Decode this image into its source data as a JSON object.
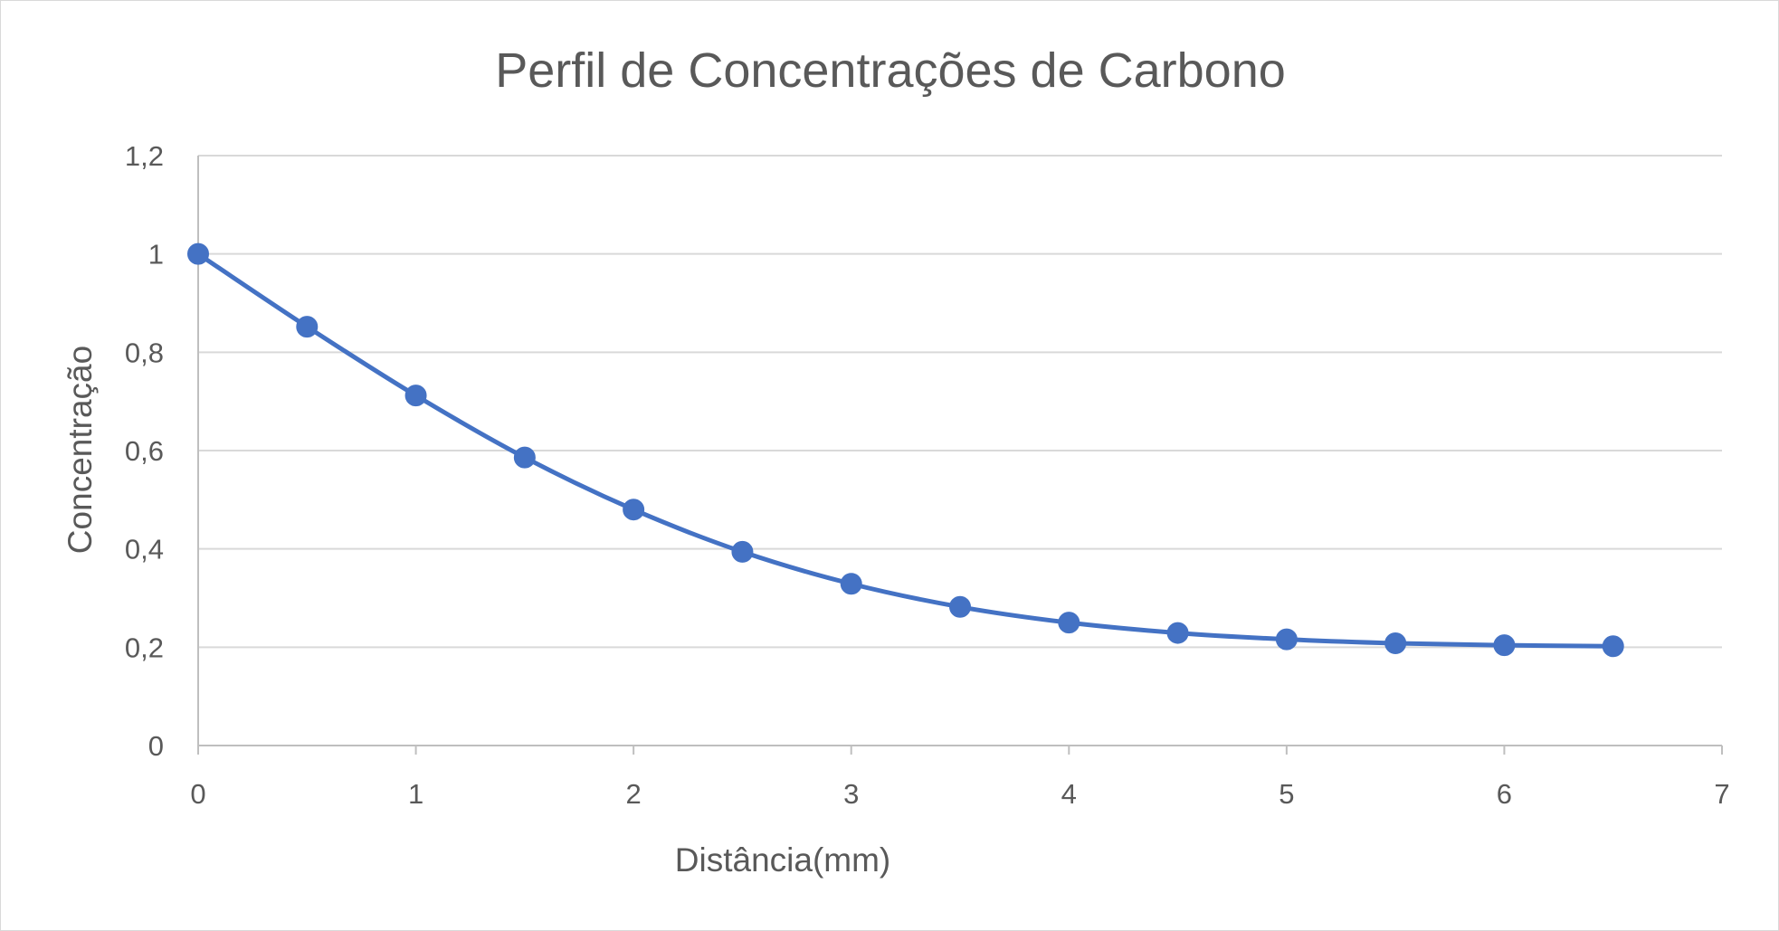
{
  "chart_data": {
    "type": "scatter",
    "title": "Perfil de Concentrações de Carbono",
    "xlabel": "Distância(mm)",
    "ylabel": "Concentração",
    "xlim": [
      0,
      7
    ],
    "ylim": [
      0,
      1.2
    ],
    "x_ticks": [
      {
        "value": 0,
        "label": "0"
      },
      {
        "value": 1,
        "label": "1"
      },
      {
        "value": 2,
        "label": "2"
      },
      {
        "value": 3,
        "label": "3"
      },
      {
        "value": 4,
        "label": "4"
      },
      {
        "value": 5,
        "label": "5"
      },
      {
        "value": 6,
        "label": "6"
      },
      {
        "value": 7,
        "label": "7"
      }
    ],
    "y_ticks": [
      {
        "value": 0,
        "label": "0"
      },
      {
        "value": 0.2,
        "label": "0,2"
      },
      {
        "value": 0.4,
        "label": "0,4"
      },
      {
        "value": 0.6,
        "label": "0,6"
      },
      {
        "value": 0.8,
        "label": "0,8"
      },
      {
        "value": 1.0,
        "label": "1"
      },
      {
        "value": 1.2,
        "label": "1,2"
      }
    ],
    "grid": "horizontal",
    "legend": "none",
    "series": [
      {
        "color": "#4472c4",
        "x": [
          0,
          0.5,
          1,
          1.5,
          2,
          2.5,
          3,
          3.5,
          4,
          4.5,
          5,
          5.5,
          6,
          6.5
        ],
        "y": [
          1.0,
          0.852,
          0.712,
          0.586,
          0.48,
          0.394,
          0.329,
          0.282,
          0.25,
          0.229,
          0.216,
          0.208,
          0.204,
          0.202
        ]
      }
    ]
  }
}
